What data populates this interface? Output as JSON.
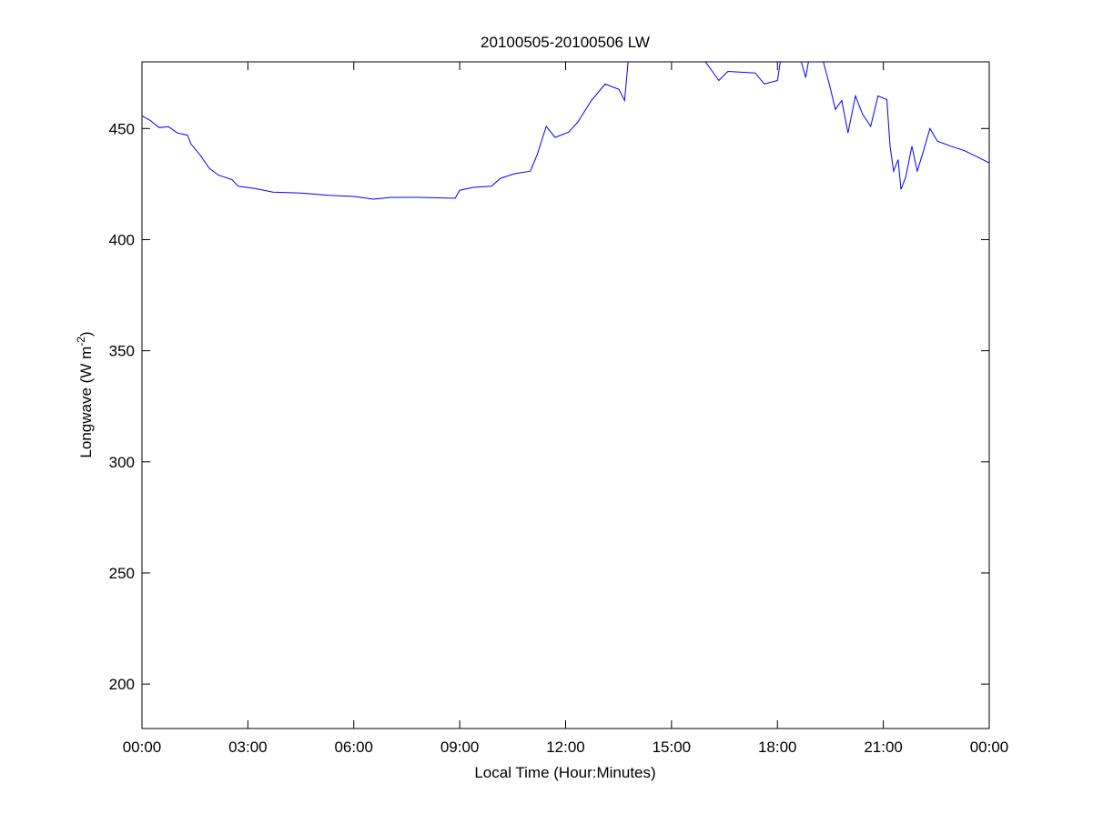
{
  "chart_data": {
    "type": "line",
    "title": "20100505-20100506 LW",
    "xlabel": "Local Time (Hour:Minutes)",
    "ylabel": "Longwave (W m",
    "ylabel_superscript": "-2",
    "ylabel_suffix": ")",
    "xlim": [
      0,
      24
    ],
    "ylim": [
      180,
      480
    ],
    "x_unit": "hours",
    "xticks": [
      0,
      3,
      6,
      9,
      12,
      15,
      18,
      21,
      24
    ],
    "xtick_labels": [
      "00:00",
      "03:00",
      "06:00",
      "09:00",
      "12:00",
      "15:00",
      "18:00",
      "21:00",
      "00:00"
    ],
    "yticks": [
      200,
      250,
      300,
      350,
      400,
      450
    ],
    "ytick_labels": [
      "200",
      "250",
      "300",
      "350",
      "400",
      "450"
    ],
    "grid": false,
    "line_color": "#0000ff",
    "series": [
      {
        "x": [
          0.0,
          0.23,
          0.49,
          0.75,
          1.0,
          1.29,
          1.39,
          1.65,
          1.91,
          2.17,
          2.55,
          2.73,
          3.2,
          3.71,
          4.49,
          5.26,
          6.03,
          6.55,
          7.06,
          7.84,
          8.87,
          9.0,
          9.38,
          9.9,
          10.16,
          10.54,
          11.0,
          11.19,
          11.45,
          11.7,
          12.09,
          12.35,
          12.73,
          13.12,
          13.51,
          13.67,
          13.77,
          14.2,
          15.0,
          15.96,
          16.34,
          16.6,
          17.37,
          17.63,
          18.0,
          18.1,
          18.5,
          18.8,
          18.9,
          19.1,
          19.3,
          19.49,
          19.64,
          19.82,
          20.0,
          20.21,
          20.41,
          20.64,
          20.85,
          21.1,
          21.19,
          21.29,
          21.42,
          21.5,
          21.63,
          21.81,
          21.96,
          22.14,
          22.32,
          22.53,
          22.92,
          23.3,
          23.69,
          24.0
        ],
        "y": [
          455.7,
          453.7,
          450.4,
          450.8,
          448,
          447,
          443,
          438,
          432,
          429,
          427,
          424,
          423,
          421.4,
          421,
          420,
          419.4,
          418.2,
          419,
          419,
          418.6,
          422.2,
          423.5,
          424,
          427.6,
          429.6,
          430.8,
          438,
          451,
          446,
          448.4,
          453,
          462.6,
          470,
          467.6,
          462.6,
          480,
          490,
          492,
          480,
          471.6,
          475.7,
          475,
          470,
          471.6,
          482,
          490,
          472.9,
          482,
          488,
          480,
          468.8,
          458.6,
          462.6,
          448,
          464.7,
          456.5,
          451,
          464.7,
          463,
          442,
          430.8,
          436,
          422.6,
          428,
          442,
          430.8,
          440,
          450,
          444.3,
          442,
          440,
          437,
          434.5
        ]
      }
    ]
  }
}
